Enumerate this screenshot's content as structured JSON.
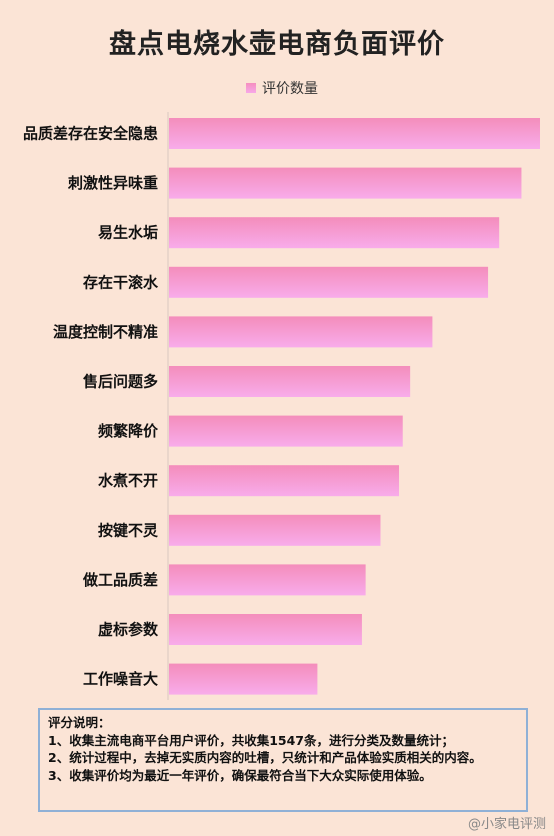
{
  "chart_data": {
    "type": "bar",
    "orientation": "horizontal",
    "title": "盘点电烧水壶电商负面评价",
    "legend": "评价数量",
    "categories": [
      "品质差存在安全隐患",
      "刺激性异味重",
      "易生水垢",
      "存在干滚水",
      "温度控制不精准",
      "售后问题多",
      "频繁降价",
      "水煮不开",
      "按键不灵",
      "做工品质差",
      "虚标参数",
      "工作噪音大"
    ],
    "values": [
      100,
      95,
      89,
      86,
      71,
      65,
      63,
      62,
      57,
      53,
      52,
      40
    ],
    "colors": {
      "bar_top": "#f48dbb",
      "bar_bottom": "#f8aceb"
    }
  },
  "notes": {
    "heading": "评分说明：",
    "items": [
      "1、收集主流电商平台用户评价，共收集1547条，进行分类及数量统计；",
      "2、统计过程中，去掉无实质内容的吐槽，只统计和产品体验实质相关的内容。",
      "3、收集评价均为最近一年评价，确保最符合当下大众实际使用体验。"
    ]
  },
  "watermark": "@小家电评测"
}
